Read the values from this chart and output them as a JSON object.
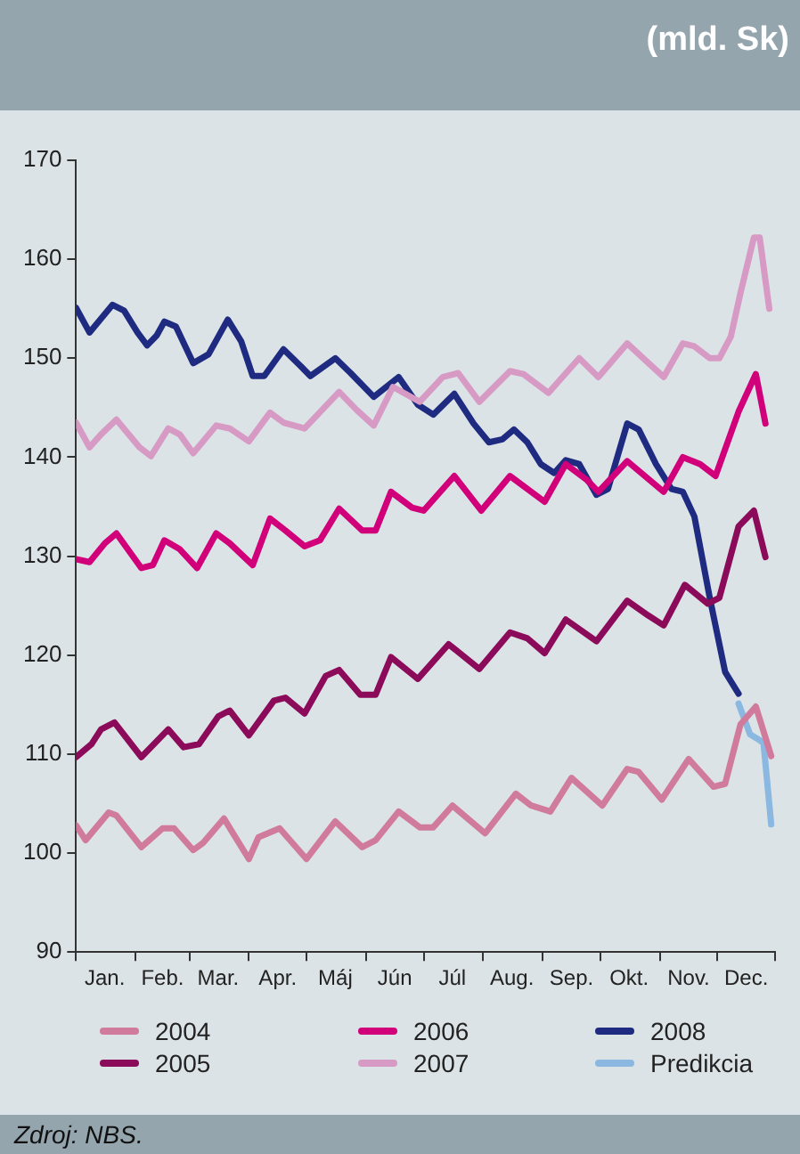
{
  "chart_data": {
    "type": "line",
    "subtitle": "(mld. Sk)",
    "annotations": [
      "Zdroj: NBS."
    ],
    "xlim": [
      "--01-01",
      "--12-31"
    ],
    "xticks": [
      {
        "value": "--01-01",
        "label": null
      },
      {
        "value": "--01-16",
        "label": "Jan."
      },
      {
        "value": "--02-01",
        "label": null
      },
      {
        "value": "--02-15",
        "label": "Feb."
      },
      {
        "value": "--03-01",
        "label": null
      },
      {
        "value": "--03-16",
        "label": "Mar."
      },
      {
        "value": "--04-01",
        "label": null
      },
      {
        "value": "--04-16",
        "label": "Apr."
      },
      {
        "value": "--05-01",
        "label": null
      },
      {
        "value": "--05-16",
        "label": "Máj"
      },
      {
        "value": "--06-01",
        "label": null
      },
      {
        "value": "--06-16",
        "label": "Jún"
      },
      {
        "value": "--07-01",
        "label": null
      },
      {
        "value": "--07-16",
        "label": "Júl"
      },
      {
        "value": "--08-01",
        "label": null
      },
      {
        "value": "--08-16",
        "label": "Aug."
      },
      {
        "value": "--09-01",
        "label": null
      },
      {
        "value": "--09-16",
        "label": "Sep."
      },
      {
        "value": "--10-01",
        "label": null
      },
      {
        "value": "--10-16",
        "label": "Okt."
      },
      {
        "value": "--11-01",
        "label": null
      },
      {
        "value": "--11-16",
        "label": "Nov."
      },
      {
        "value": "--12-01",
        "label": null
      },
      {
        "value": "--12-16",
        "label": "Dec."
      },
      {
        "value": "--12-31",
        "label": null
      }
    ],
    "ylim": [
      90,
      170
    ],
    "yticks": [
      90,
      100,
      110,
      120,
      130,
      140,
      150,
      160,
      170
    ],
    "grid": false,
    "legend": "bottom",
    "marker": "none",
    "line_style": "solid",
    "series": [
      {
        "name": "2004",
        "color": "#d07a9c",
        "x": [
          "--01-01",
          "--01-06",
          "--01-18",
          "--01-22",
          "--02-04",
          "--02-15",
          "--02-21",
          "--03-03",
          "--03-08",
          "--03-19",
          "--04-01",
          "--04-06",
          "--04-17",
          "--05-01",
          "--05-16",
          "--05-30",
          "--06-06",
          "--06-18",
          "--06-29",
          "--07-06",
          "--07-16",
          "--08-02",
          "--08-18",
          "--08-26",
          "--09-05",
          "--09-16",
          "--10-02",
          "--10-15",
          "--10-21",
          "--11-02",
          "--11-16",
          "--11-29",
          "--12-05",
          "--12-13",
          "--12-21",
          "--12-29"
        ],
        "values": [
          102.8,
          101.3,
          104.1,
          103.8,
          100.6,
          102.5,
          102.5,
          100.3,
          101,
          103.5,
          99.4,
          101.6,
          102.5,
          99.4,
          103.2,
          100.6,
          101.3,
          104.2,
          102.6,
          102.6,
          104.8,
          102,
          106,
          104.8,
          104.2,
          107.6,
          104.8,
          108.5,
          108.2,
          105.4,
          109.5,
          106.7,
          107,
          113,
          114.8,
          109.8
        ]
      },
      {
        "name": "2005",
        "color": "#8b0a5a",
        "x": [
          "--01-01",
          "--01-09",
          "--01-14",
          "--01-21",
          "--02-04",
          "--02-18",
          "--02-26",
          "--03-06",
          "--03-16",
          "--03-22",
          "--04-01",
          "--04-14",
          "--04-20",
          "--04-30",
          "--05-11",
          "--05-18",
          "--05-29",
          "--06-06",
          "--06-14",
          "--06-28",
          "--07-14",
          "--07-30",
          "--08-15",
          "--08-24",
          "--09-02",
          "--09-13",
          "--09-29",
          "--10-15",
          "--10-26",
          "--11-03",
          "--11-14",
          "--11-26",
          "--12-02",
          "--12-12",
          "--12-20",
          "--12-26"
        ],
        "values": [
          109.7,
          111,
          112.5,
          113.2,
          109.7,
          112.5,
          110.7,
          111,
          113.8,
          114.4,
          111.9,
          115.4,
          115.7,
          114.1,
          117.9,
          118.5,
          116,
          116,
          119.8,
          117.6,
          121.1,
          118.6,
          122.3,
          121.7,
          120.2,
          123.6,
          121.4,
          125.5,
          124,
          123,
          127.1,
          125.2,
          125.8,
          133,
          134.6,
          129.9
        ]
      },
      {
        "name": "2006",
        "color": "#d1007a",
        "x": [
          "--01-01",
          "--01-08",
          "--01-16",
          "--01-22",
          "--02-04",
          "--02-10",
          "--02-16",
          "--02-24",
          "--03-05",
          "--03-15",
          "--03-22",
          "--04-03",
          "--04-12",
          "--04-20",
          "--04-30",
          "--05-08",
          "--05-18",
          "--05-30",
          "--06-06",
          "--06-14",
          "--06-25",
          "--07-01",
          "--07-17",
          "--07-31",
          "--08-15",
          "--09-02",
          "--09-13",
          "--09-24",
          "--09-30",
          "--10-15",
          "--11-03",
          "--11-13",
          "--11-22",
          "--11-30",
          "--12-12",
          "--12-21",
          "--12-26"
        ],
        "values": [
          129.7,
          129.4,
          131.3,
          132.3,
          128.8,
          129.1,
          131.6,
          130.7,
          128.8,
          132.3,
          131.3,
          129.1,
          133.8,
          132.6,
          131,
          131.6,
          134.8,
          132.6,
          132.6,
          136.5,
          134.9,
          134.6,
          138.1,
          134.6,
          138.1,
          135.5,
          139.3,
          137.7,
          136.5,
          139.6,
          136.5,
          140,
          139.3,
          138.1,
          144.6,
          148.4,
          143.4
        ]
      },
      {
        "name": "2007",
        "color": "#d79ac4",
        "x": [
          "--01-01",
          "--01-08",
          "--01-14",
          "--01-22",
          "--02-03",
          "--02-09",
          "--02-18",
          "--02-24",
          "--03-03",
          "--03-15",
          "--03-22",
          "--04-01",
          "--04-12",
          "--04-19",
          "--04-30",
          "--05-18",
          "--05-27",
          "--06-05",
          "--06-15",
          "--06-29",
          "--07-11",
          "--07-19",
          "--07-30",
          "--08-15",
          "--08-22",
          "--09-04",
          "--09-20",
          "--09-30",
          "--10-15",
          "--10-25",
          "--11-03",
          "--11-13",
          "--11-19",
          "--11-27",
          "--12-02",
          "--12-08",
          "--12-13",
          "--12-20",
          "--12-23",
          "--12-28"
        ],
        "values": [
          143.5,
          141,
          142.3,
          143.8,
          141,
          140.1,
          142.9,
          142.3,
          140.4,
          143.2,
          142.9,
          141.6,
          144.5,
          143.5,
          142.9,
          146.6,
          144.8,
          143.2,
          147.1,
          145.6,
          148.1,
          148.5,
          145.6,
          148.7,
          148.4,
          146.5,
          150,
          148.1,
          151.5,
          149.7,
          148.1,
          151.5,
          151.2,
          150,
          150,
          152.2,
          156.6,
          162.2,
          162.2,
          155
        ]
      },
      {
        "name": "2008",
        "color": "#1f2b80",
        "x": [
          "--01-01",
          "--01-08",
          "--01-20",
          "--01-26",
          "--02-02",
          "--02-07",
          "--02-12",
          "--02-16",
          "--02-22",
          "--03-03",
          "--03-11",
          "--03-21",
          "--03-28",
          "--04-03",
          "--04-09",
          "--04-19",
          "--04-28",
          "--05-03",
          "--05-16",
          "--05-24",
          "--06-05",
          "--06-18",
          "--06-28",
          "--07-06",
          "--07-17",
          "--07-27",
          "--08-04",
          "--08-11",
          "--08-17",
          "--08-24",
          "--08-31",
          "--09-07",
          "--09-13",
          "--09-20",
          "--09-29",
          "--10-05",
          "--10-15",
          "--10-21",
          "--10-30",
          "--11-07",
          "--11-13",
          "--11-19",
          "--11-27",
          "--12-05",
          "--12-12"
        ],
        "values": [
          155.1,
          152.6,
          155.4,
          154.8,
          152.6,
          151.3,
          152.3,
          153.7,
          153.2,
          149.5,
          150.4,
          153.9,
          151.7,
          148.2,
          148.2,
          150.9,
          149.2,
          148.2,
          150,
          148.5,
          146.1,
          148.1,
          145.3,
          144.3,
          146.4,
          143.4,
          141.5,
          141.8,
          142.8,
          141.5,
          139.3,
          138.4,
          139.7,
          139.3,
          136.2,
          136.8,
          143.4,
          142.8,
          139.3,
          136.8,
          136.5,
          134,
          125.8,
          118.3,
          116.1
        ]
      },
      {
        "name": "Predikcia",
        "color": "#8ab8e0",
        "x": [
          "--12-12",
          "--12-18",
          "--12-23",
          "--12-25",
          "--12-29"
        ],
        "values": [
          115.1,
          112,
          111.4,
          111.1,
          102.9
        ]
      }
    ]
  }
}
